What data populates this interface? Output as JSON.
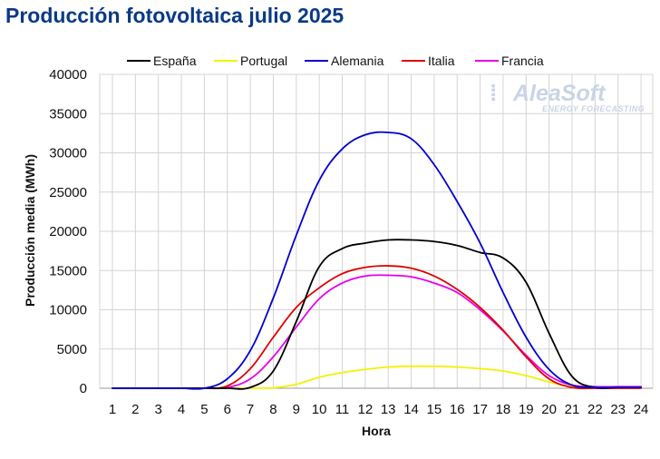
{
  "chart_data": {
    "type": "line",
    "title": "Producción fotovoltaica julio 2025",
    "xlabel": "Hora",
    "ylabel": "Producción media (MWh)",
    "x": [
      1,
      2,
      3,
      4,
      5,
      6,
      7,
      8,
      9,
      10,
      11,
      12,
      13,
      14,
      15,
      16,
      17,
      18,
      19,
      20,
      21,
      22,
      23,
      24
    ],
    "xlim": [
      1,
      24
    ],
    "ylim": [
      0,
      40000
    ],
    "yticks": [
      0,
      5000,
      10000,
      15000,
      20000,
      25000,
      30000,
      35000,
      40000
    ],
    "grid": true,
    "legend_position": "top",
    "series": [
      {
        "name": "España",
        "color": "#000000",
        "values": [
          0,
          0,
          0,
          0,
          0,
          0,
          100,
          2200,
          8500,
          15500,
          17800,
          18500,
          18900,
          18900,
          18700,
          18200,
          17300,
          16600,
          13500,
          7000,
          1500,
          100,
          100,
          100
        ]
      },
      {
        "name": "Portugal",
        "color": "#f2f200",
        "values": [
          0,
          0,
          0,
          0,
          0,
          0,
          0,
          50,
          500,
          1400,
          2000,
          2400,
          2700,
          2800,
          2800,
          2700,
          2500,
          2200,
          1600,
          800,
          200,
          50,
          0,
          0
        ]
      },
      {
        "name": "Alemania",
        "color": "#0000d0",
        "values": [
          0,
          0,
          0,
          0,
          0,
          1200,
          4800,
          11500,
          19500,
          26500,
          30500,
          32300,
          32600,
          31800,
          28500,
          23800,
          18500,
          12200,
          6500,
          2400,
          400,
          100,
          100,
          100
        ]
      },
      {
        "name": "Italia",
        "color": "#e00000",
        "values": [
          0,
          0,
          0,
          0,
          0,
          300,
          2500,
          6500,
          10300,
          12800,
          14600,
          15400,
          15600,
          15300,
          14300,
          12600,
          10300,
          7400,
          4000,
          1200,
          100,
          0,
          0,
          0
        ]
      },
      {
        "name": "Francia",
        "color": "#e800e8",
        "values": [
          0,
          0,
          0,
          0,
          0,
          100,
          1200,
          4000,
          7800,
          11400,
          13400,
          14300,
          14400,
          14200,
          13400,
          12200,
          10000,
          7300,
          4200,
          1600,
          400,
          200,
          200,
          200
        ]
      }
    ]
  },
  "watermark": {
    "brand": "AleaSoft",
    "tagline": "ENERGY FORECASTING"
  }
}
